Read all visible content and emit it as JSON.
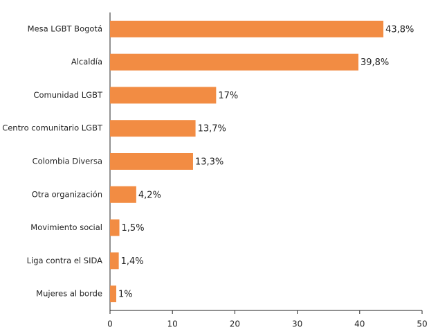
{
  "chart_data": {
    "type": "hbar",
    "categories": [
      "Mesa LGBT Bogotá",
      "Alcaldía",
      "Comunidad LGBT",
      "Centro comunitario LGBT",
      "Colombia Diversa",
      "Otra organización",
      "Movimiento social",
      "Liga contra el SIDA",
      "Mujeres al borde"
    ],
    "values": [
      43.8,
      39.8,
      17,
      13.7,
      13.3,
      4.2,
      1.5,
      1.4,
      1
    ],
    "value_labels": [
      "43,8%",
      "39,8%",
      "17%",
      "13,7%",
      "13,3%",
      "4,2%",
      "1,5%",
      "1,4%",
      "1%"
    ],
    "color": "#f28c43",
    "xlim": [
      0,
      50
    ],
    "xticks": [
      0,
      10,
      20,
      30,
      40,
      50
    ],
    "grid": false
  }
}
